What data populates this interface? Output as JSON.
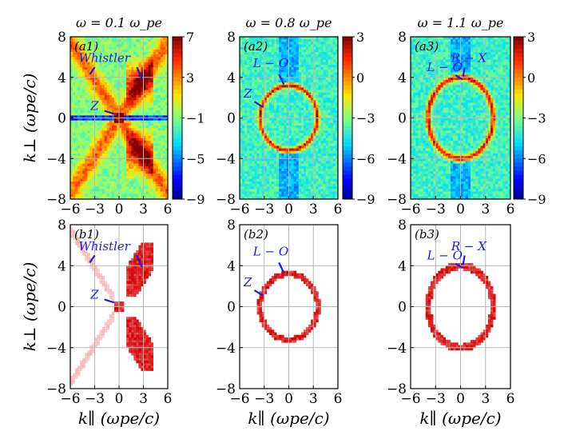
{
  "colors": {
    "annotation": "#1a1adb",
    "grid": "#b8b8b8",
    "ring": "#d40000",
    "axis": "#000000"
  },
  "chart_data": [
    {
      "id": "a1",
      "type": "heatmap",
      "label": "(a1)",
      "title": "ω = 0.1 ω_pe",
      "xlim": [
        -6,
        6
      ],
      "ylim": [
        -8,
        8
      ],
      "xticks": [
        -6,
        -3,
        0,
        3,
        6
      ],
      "yticks": [
        -8,
        -4,
        0,
        4,
        8
      ],
      "xtick_labels": [
        "−6",
        "−3",
        "0",
        "3",
        "6"
      ],
      "ytick_labels": [
        "−8",
        "−4",
        "0",
        "4",
        "8"
      ],
      "ylabel": "k⊥ (ωpe/c)",
      "xlabel": "",
      "colorbar": {
        "min": -9,
        "max": 7,
        "ticks": [
          7,
          3,
          -1,
          -5,
          -9
        ],
        "tick_labels": [
          "7",
          "3",
          "−1",
          "−5",
          "−9"
        ]
      },
      "features": "whistler",
      "annotations": [
        {
          "text": "Whistler",
          "text_xy": [
            -1.8,
            5.5
          ],
          "line": [
            [
              -3.6,
              4.3
            ],
            [
              -3.0,
              5.0
            ]
          ]
        },
        {
          "text": "",
          "text_xy": [
            0,
            0
          ],
          "line": [
            [
              2.2,
              5.0
            ],
            [
              2.8,
              3.9
            ]
          ]
        },
        {
          "text": "Z",
          "text_xy": [
            -3.0,
            0.8
          ],
          "line": [
            [
              -1.8,
              0.7
            ],
            [
              -0.6,
              0.4
            ]
          ]
        }
      ]
    },
    {
      "id": "a2",
      "type": "heatmap",
      "label": "(a2)",
      "title": "ω = 0.8 ω_pe",
      "xlim": [
        -6,
        6
      ],
      "ylim": [
        -8,
        8
      ],
      "xticks": [
        -6,
        -3,
        0,
        3,
        6
      ],
      "yticks": [
        -8,
        -4,
        0,
        4,
        8
      ],
      "xtick_labels": [
        "−6",
        "−3",
        "0",
        "3",
        "6"
      ],
      "ytick_labels": [
        "−8",
        "−4",
        "0",
        "4",
        "8"
      ],
      "ylabel": "",
      "xlabel": "",
      "colorbar": {
        "min": -9,
        "max": 3,
        "ticks": [
          3,
          0,
          -3,
          -6,
          -9
        ],
        "tick_labels": [
          "3",
          "0",
          "−3",
          "−6",
          "−9"
        ]
      },
      "features": "ring",
      "ring": {
        "rx": 3.5,
        "ry": 3.2
      },
      "annotations": [
        {
          "text": "L − O",
          "text_xy": [
            -2.2,
            5.0
          ],
          "line": [
            [
              -1.2,
              4.3
            ],
            [
              -0.6,
              3.3
            ]
          ]
        },
        {
          "text": "Z",
          "text_xy": [
            -5.0,
            2.0
          ],
          "line": [
            [
              -4.2,
              1.6
            ],
            [
              -3.2,
              1.1
            ]
          ]
        }
      ]
    },
    {
      "id": "a3",
      "type": "heatmap",
      "label": "(a3)",
      "title": "ω = 1.1 ω_pe",
      "xlim": [
        -6,
        6
      ],
      "ylim": [
        -8,
        8
      ],
      "xticks": [
        -6,
        -3,
        0,
        3,
        6
      ],
      "yticks": [
        -8,
        -4,
        0,
        4,
        8
      ],
      "xtick_labels": [
        "−6",
        "−3",
        "0",
        "3",
        "6"
      ],
      "ytick_labels": [
        "−8",
        "−4",
        "0",
        "4",
        "8"
      ],
      "ylabel": "",
      "xlabel": "",
      "colorbar": {
        "min": -9,
        "max": 3,
        "ticks": [
          3,
          0,
          -3,
          -6,
          -9
        ],
        "tick_labels": [
          "3",
          "0",
          "−3",
          "−6",
          "−9"
        ]
      },
      "features": "ring",
      "ring": {
        "rx": 3.9,
        "ry": 4.0
      },
      "annotations": [
        {
          "text": "R − X",
          "text_xy": [
            1.0,
            5.5
          ],
          "line": [
            [
              0.5,
              5.0
            ],
            [
              0.3,
              4.1
            ]
          ]
        },
        {
          "text": "L − O",
          "text_xy": [
            -1.9,
            4.6
          ],
          "line": [
            [
              -0.6,
              4.2
            ],
            [
              0.2,
              3.8
            ]
          ]
        }
      ]
    },
    {
      "id": "b1",
      "type": "heatmap",
      "label": "(b1)",
      "xlim": [
        -6,
        6
      ],
      "ylim": [
        -8,
        8
      ],
      "xticks": [
        -6,
        -3,
        0,
        3,
        6
      ],
      "yticks": [
        -8,
        -4,
        0,
        4,
        8
      ],
      "xtick_labels": [
        "−6",
        "−3",
        "0",
        "3",
        "6"
      ],
      "ytick_labels": [
        "−8",
        "−4",
        "0",
        "4",
        "8"
      ],
      "ylabel": "k⊥ (ωpe/c)",
      "xlabel": "k∥ (ωpe/c)",
      "features": "whistler",
      "annotations": [
        {
          "text": "Whistler",
          "text_xy": [
            -1.8,
            5.5
          ],
          "line": [
            [
              -3.6,
              4.3
            ],
            [
              -3.0,
              5.0
            ]
          ]
        },
        {
          "text": "",
          "text_xy": [
            0,
            0
          ],
          "line": [
            [
              2.2,
              5.0
            ],
            [
              2.8,
              3.9
            ]
          ]
        },
        {
          "text": "Z",
          "text_xy": [
            -3.0,
            0.8
          ],
          "line": [
            [
              -1.8,
              0.7
            ],
            [
              -0.6,
              0.4
            ]
          ]
        }
      ]
    },
    {
      "id": "b2",
      "type": "heatmap",
      "label": "(b2)",
      "xlim": [
        -6,
        6
      ],
      "ylim": [
        -8,
        8
      ],
      "xticks": [
        -6,
        -3,
        0,
        3,
        6
      ],
      "yticks": [
        -8,
        -4,
        0,
        4,
        8
      ],
      "xtick_labels": [
        "−6",
        "−3",
        "0",
        "3",
        "6"
      ],
      "ytick_labels": [
        "−8",
        "−4",
        "0",
        "4",
        "8"
      ],
      "ylabel": "",
      "xlabel": "k∥ (ωpe/c)",
      "features": "ring",
      "ring": {
        "rx": 3.5,
        "ry": 3.2
      },
      "annotations": [
        {
          "text": "L − O",
          "text_xy": [
            -2.2,
            5.0
          ],
          "line": [
            [
              -1.2,
              4.3
            ],
            [
              -0.6,
              3.3
            ]
          ]
        },
        {
          "text": "Z",
          "text_xy": [
            -5.0,
            2.0
          ],
          "line": [
            [
              -4.2,
              1.6
            ],
            [
              -3.2,
              1.1
            ]
          ]
        }
      ]
    },
    {
      "id": "b3",
      "type": "heatmap",
      "label": "(b3)",
      "xlim": [
        -6,
        6
      ],
      "ylim": [
        -8,
        8
      ],
      "xticks": [
        -6,
        -3,
        0,
        3,
        6
      ],
      "yticks": [
        -8,
        -4,
        0,
        4,
        8
      ],
      "xtick_labels": [
        "−6",
        "−3",
        "0",
        "3",
        "6"
      ],
      "ytick_labels": [
        "−8",
        "−4",
        "0",
        "4",
        "8"
      ],
      "ylabel": "",
      "xlabel": "k∥ (ωpe/c)",
      "features": "ring",
      "ring": {
        "rx": 3.9,
        "ry": 4.0
      },
      "annotations": [
        {
          "text": "R − X",
          "text_xy": [
            1.0,
            5.5
          ],
          "line": [
            [
              0.5,
              5.0
            ],
            [
              0.3,
              4.1
            ]
          ]
        },
        {
          "text": "L − O",
          "text_xy": [
            -1.9,
            4.6
          ],
          "line": [
            [
              -0.6,
              4.2
            ],
            [
              0.2,
              3.8
            ]
          ]
        }
      ]
    }
  ]
}
